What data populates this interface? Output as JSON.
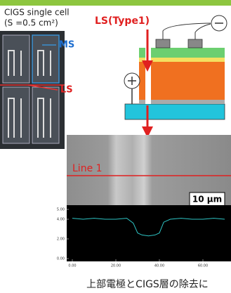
{
  "photo": {
    "title": "CIGS single cell",
    "area": "(S =0.5 cm²)",
    "ms_label": "MS",
    "ls_label": "LS"
  },
  "schematic": {
    "label": "LS(Type1)"
  },
  "sem": {
    "line_label": "Line 1",
    "scale_bar": "10 μm"
  },
  "profile": {
    "x": [
      0,
      5,
      10,
      15,
      20,
      25,
      28,
      30,
      32,
      35,
      38,
      40,
      42,
      45,
      50,
      55,
      60,
      65,
      70
    ],
    "y": [
      4.1,
      4.0,
      4.1,
      4.0,
      4.0,
      4.1,
      3.6,
      2.6,
      2.4,
      2.3,
      2.4,
      2.6,
      3.7,
      4.0,
      4.1,
      4.0,
      4.0,
      4.1,
      4.0
    ],
    "xlim": [
      0,
      70
    ],
    "ylim": [
      0,
      5
    ],
    "xticks": [
      {
        "value": 0,
        "label": "0.00"
      },
      {
        "value": 20,
        "label": "20.00"
      },
      {
        "value": 40,
        "label": "40.00"
      },
      {
        "value": 60,
        "label": "60.00"
      }
    ],
    "yticks": [
      {
        "value": 5,
        "label": "5.00"
      },
      {
        "value": 4,
        "label": "4.00"
      },
      {
        "value": 2,
        "label": "2.00"
      },
      {
        "value": 0,
        "label": "0.00"
      }
    ],
    "color": "#2ec4c4"
  },
  "caption": "上部電極とCIGS層の除去に"
}
